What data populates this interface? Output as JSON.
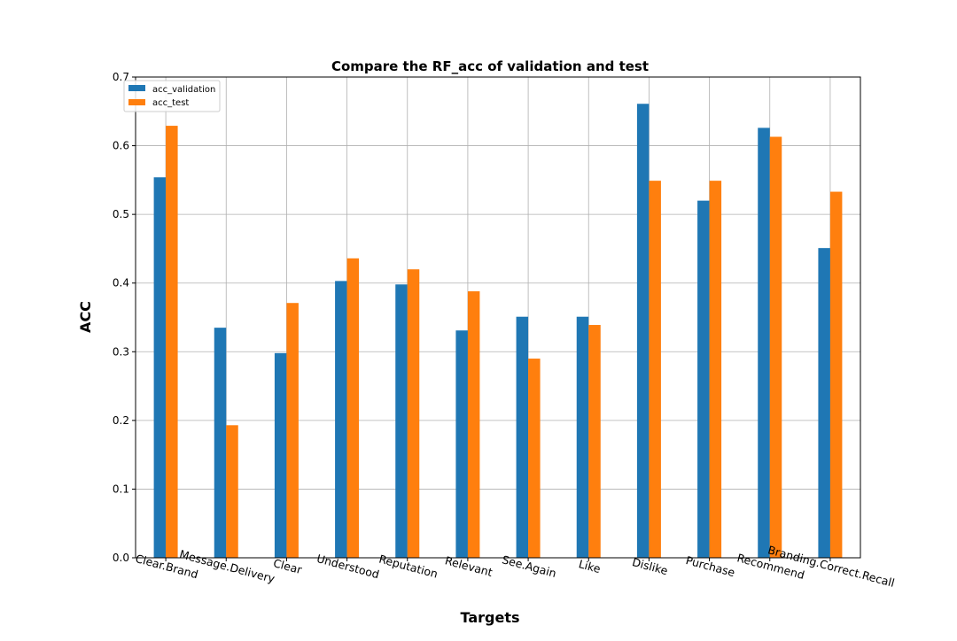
{
  "chart_data": {
    "type": "bar",
    "title": "Compare the RF_acc of validation and test",
    "xlabel": "Targets",
    "ylabel": "ACC",
    "ylim": [
      0,
      0.7
    ],
    "yticks": [
      "0.0",
      "0.1",
      "0.2",
      "0.3",
      "0.4",
      "0.5",
      "0.6",
      "0.7"
    ],
    "grid": true,
    "legend_position": "top-left",
    "categories": [
      "Clear.Brand",
      "Message.Delivery",
      "Clear",
      "Understood",
      "Reputation",
      "Relevant",
      "See.Again",
      "Like",
      "Dislike",
      "Purchase",
      "Recommend",
      "Branding.Correct.Recall"
    ],
    "series": [
      {
        "name": "acc_validation",
        "color": "#1f77b4",
        "values": [
          0.554,
          0.335,
          0.298,
          0.403,
          0.398,
          0.331,
          0.351,
          0.351,
          0.661,
          0.52,
          0.626,
          0.451
        ]
      },
      {
        "name": "acc_test",
        "color": "#ff7f0e",
        "values": [
          0.629,
          0.193,
          0.371,
          0.436,
          0.42,
          0.388,
          0.29,
          0.339,
          0.549,
          0.549,
          0.613,
          0.533
        ]
      }
    ]
  }
}
